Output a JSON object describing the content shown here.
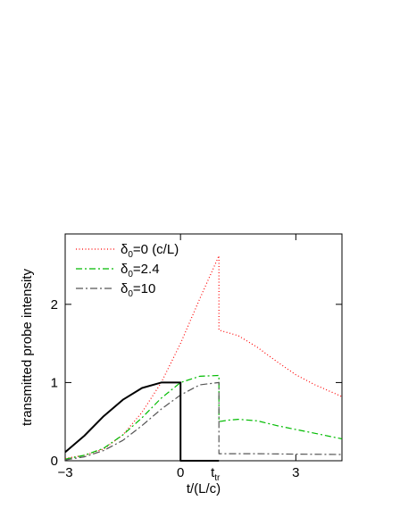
{
  "chart_data": {
    "type": "line",
    "xlabel": "t/(L/c)",
    "ylabel": "transmitted probe intensity",
    "xlim": [
      -3,
      4.2
    ],
    "ylim": [
      0,
      2.9
    ],
    "x_ticks": [
      {
        "value": -3,
        "label": "−3"
      },
      {
        "value": 0,
        "label": "0"
      },
      {
        "value": 3,
        "label": "3"
      }
    ],
    "y_ticks": [
      {
        "value": 0,
        "label": "0"
      },
      {
        "value": 1,
        "label": "1"
      },
      {
        "value": 2,
        "label": "2"
      }
    ],
    "annotation": {
      "x": 1,
      "base": "t",
      "sub": "tr"
    },
    "grid": false,
    "legend_position": "top-left",
    "series": [
      {
        "name": "δ₀=0 (c/L)",
        "legend": {
          "base": "δ",
          "sub": "0",
          "rest": "=0 (c/L)"
        },
        "color": "#ff0000",
        "dash": "1,2.5",
        "x": [
          -3,
          -2.5,
          -2,
          -1.5,
          -1,
          -0.5,
          0,
          0.5,
          1,
          1,
          1.5,
          2,
          2.5,
          3,
          3.5,
          4.2
        ],
        "y": [
          0.03,
          0.07,
          0.15,
          0.33,
          0.62,
          1.0,
          1.5,
          2.07,
          2.62,
          1.67,
          1.6,
          1.45,
          1.27,
          1.1,
          0.97,
          0.82
        ]
      },
      {
        "name": "δ₀=2.4",
        "legend": {
          "base": "δ",
          "sub": "0",
          "rest": "=2.4"
        },
        "color": "#00bb00",
        "dash": "7,3,2,3",
        "x": [
          -3,
          -2.5,
          -2,
          -1.5,
          -1,
          -0.5,
          0,
          0.5,
          1,
          1,
          1.25,
          1.5,
          2,
          2.5,
          3,
          3.5,
          4.2
        ],
        "y": [
          0.02,
          0.07,
          0.16,
          0.33,
          0.55,
          0.8,
          1.0,
          1.08,
          1.09,
          0.5,
          0.52,
          0.53,
          0.51,
          0.45,
          0.4,
          0.35,
          0.28
        ]
      },
      {
        "name": "δ₀=10",
        "legend": {
          "base": "δ",
          "sub": "0",
          "rest": "=10"
        },
        "color": "#555555",
        "dash": "8,3,2,3",
        "x": [
          -3,
          -2.5,
          -2,
          -1.5,
          -1,
          -0.5,
          0,
          0.5,
          1,
          1,
          2,
          3,
          4.2
        ],
        "y": [
          0.01,
          0.05,
          0.13,
          0.26,
          0.45,
          0.66,
          0.84,
          0.97,
          1.0,
          0.09,
          0.09,
          0.085,
          0.08
        ]
      },
      {
        "name": "",
        "color": "#000000",
        "dash": "",
        "width": 2,
        "x": [
          -3,
          -2.5,
          -2,
          -1.5,
          -1,
          -0.5,
          -0.25,
          0,
          0,
          1
        ],
        "y": [
          0.11,
          0.32,
          0.57,
          0.78,
          0.93,
          1.0,
          1.0,
          1.0,
          0,
          0
        ]
      }
    ]
  }
}
